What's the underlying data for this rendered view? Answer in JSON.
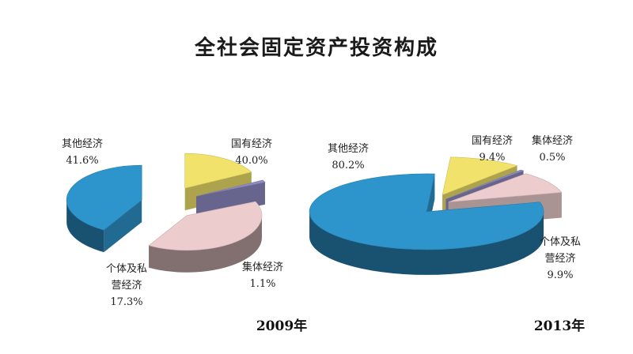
{
  "title": "全社会固定资产投资构成",
  "chart_data": [
    {
      "type": "pie",
      "year_label": "2009年",
      "slices": [
        {
          "key": "other",
          "lines": [
            "其他经济"
          ],
          "pct_label": "41.6%",
          "value": 41.6,
          "color": "#2e94cc"
        },
        {
          "key": "state",
          "lines": [
            "国有经济"
          ],
          "pct_label": "40.0%",
          "value": 40.0,
          "color": "#eccccc"
        },
        {
          "key": "coll",
          "lines": [
            "集体经济"
          ],
          "pct_label": "1.1%",
          "value": 1.1,
          "color": "#8f8cc4"
        },
        {
          "key": "private",
          "lines": [
            "个体及私",
            "营经济"
          ],
          "pct_label": "17.3%",
          "value": 17.3,
          "color": "#f0e26a"
        }
      ]
    },
    {
      "type": "pie",
      "year_label": "2013年",
      "slices": [
        {
          "key": "other",
          "lines": [
            "其他经济"
          ],
          "pct_label": "80.2%",
          "value": 80.2,
          "color": "#2e94cc"
        },
        {
          "key": "state",
          "lines": [
            "国有经济"
          ],
          "pct_label": "9.4%",
          "value": 9.4,
          "color": "#eccccc"
        },
        {
          "key": "coll",
          "lines": [
            "集体经济"
          ],
          "pct_label": "0.5%",
          "value": 0.5,
          "color": "#8f8cc4"
        },
        {
          "key": "private",
          "lines": [
            "个体及私",
            "营经济"
          ],
          "pct_label": "9.9%",
          "value": 9.9,
          "color": "#f0e26a"
        }
      ]
    }
  ]
}
